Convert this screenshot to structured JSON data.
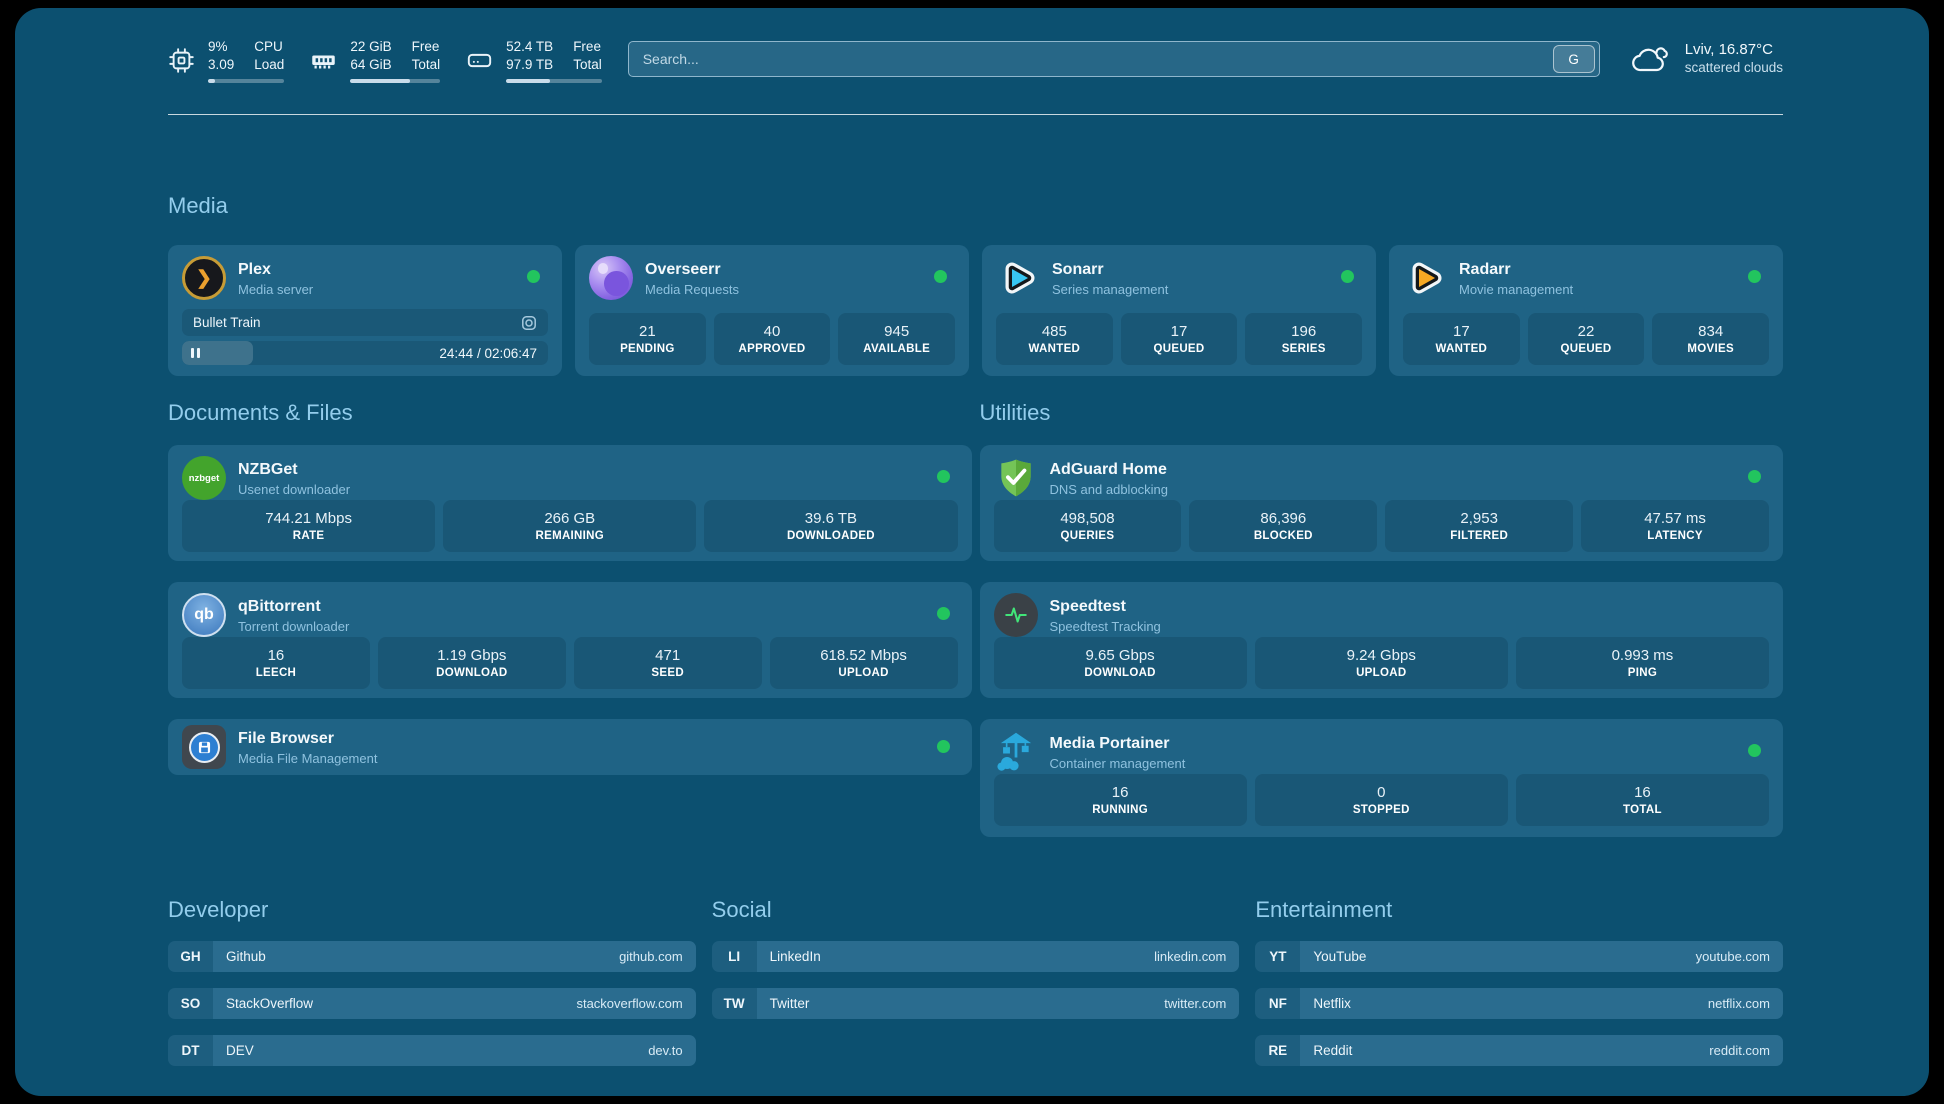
{
  "colors": {
    "page_bg": "#0C5070",
    "card_bg": "#1F6385",
    "status_online": "#22C55E",
    "heading": "#93CDEC"
  },
  "header": {
    "system": [
      {
        "icon": "cpu-icon",
        "values": [
          "9%",
          "3.09"
        ],
        "labels": [
          "CPU",
          "Load"
        ],
        "progress_percent": 9
      },
      {
        "icon": "ram-icon",
        "values": [
          "22 GiB",
          "64 GiB"
        ],
        "labels": [
          "Free",
          "Total"
        ],
        "progress_percent": 66
      },
      {
        "icon": "disk-icon",
        "values": [
          "52.4 TB",
          "97.9 TB"
        ],
        "labels": [
          "Free",
          "Total"
        ],
        "progress_percent": 46
      }
    ],
    "search": {
      "placeholder": "Search...",
      "key_label": "G"
    },
    "weather": {
      "icon": "cloud-icon",
      "location_temp": "Lviv, 16.87°C",
      "condition": "scattered clouds"
    }
  },
  "sections": {
    "media": {
      "title": "Media",
      "cards": {
        "plex": {
          "icon": "plex-icon",
          "icon_glyph": "❯",
          "name": "Plex",
          "desc": "Media server",
          "online": true,
          "now_playing": {
            "title": "Bullet Train",
            "time": "24:44 / 02:06:47",
            "progress_percent": 19.5
          }
        },
        "overseerr": {
          "icon": "overseerr-icon",
          "name": "Overseerr",
          "desc": "Media Requests",
          "online": true,
          "stats": [
            {
              "value": "21",
              "label": "PENDING"
            },
            {
              "value": "40",
              "label": "APPROVED"
            },
            {
              "value": "945",
              "label": "AVAILABLE"
            }
          ]
        },
        "sonarr": {
          "icon": "sonarr-icon",
          "name": "Sonarr",
          "desc": "Series management",
          "online": true,
          "stats": [
            {
              "value": "485",
              "label": "WANTED"
            },
            {
              "value": "17",
              "label": "QUEUED"
            },
            {
              "value": "196",
              "label": "SERIES"
            }
          ]
        },
        "radarr": {
          "icon": "radarr-icon",
          "name": "Radarr",
          "desc": "Movie management",
          "online": true,
          "stats": [
            {
              "value": "17",
              "label": "WANTED"
            },
            {
              "value": "22",
              "label": "QUEUED"
            },
            {
              "value": "834",
              "label": "MOVIES"
            }
          ]
        }
      }
    },
    "documents": {
      "title": "Documents & Files",
      "cards": {
        "nzbget": {
          "icon": "nzbget-icon",
          "icon_text": "nzbget",
          "name": "NZBGet",
          "desc": "Usenet downloader",
          "online": true,
          "stats": [
            {
              "value": "744.21 Mbps",
              "label": "RATE"
            },
            {
              "value": "266 GB",
              "label": "REMAINING"
            },
            {
              "value": "39.6 TB",
              "label": "DOWNLOADED"
            }
          ]
        },
        "qbittorrent": {
          "icon": "qbittorrent-icon",
          "icon_text": "qb",
          "name": "qBittorrent",
          "desc": "Torrent downloader",
          "online": true,
          "stats": [
            {
              "value": "16",
              "label": "LEECH"
            },
            {
              "value": "1.19 Gbps",
              "label": "DOWNLOAD"
            },
            {
              "value": "471",
              "label": "SEED"
            },
            {
              "value": "618.52 Mbps",
              "label": "UPLOAD"
            }
          ]
        },
        "filebrowser": {
          "icon": "filebrowser-icon",
          "name": "File Browser",
          "desc": "Media File Management",
          "online": true
        }
      }
    },
    "utilities": {
      "title": "Utilities",
      "cards": {
        "adguard": {
          "icon": "adguard-icon",
          "name": "AdGuard Home",
          "desc": "DNS and adblocking",
          "online": true,
          "stats": [
            {
              "value": "498,508",
              "label": "QUERIES"
            },
            {
              "value": "86,396",
              "label": "BLOCKED"
            },
            {
              "value": "2,953",
              "label": "FILTERED"
            },
            {
              "value": "47.57 ms",
              "label": "LATENCY"
            }
          ]
        },
        "speedtest": {
          "icon": "speedtest-icon",
          "name": "Speedtest",
          "desc": "Speedtest Tracking",
          "online": false,
          "stats": [
            {
              "value": "9.65 Gbps",
              "label": "DOWNLOAD"
            },
            {
              "value": "9.24 Gbps",
              "label": "UPLOAD"
            },
            {
              "value": "0.993 ms",
              "label": "PING"
            }
          ]
        },
        "portainer": {
          "icon": "portainer-icon",
          "name": "Media Portainer",
          "desc": "Container management",
          "online": true,
          "stats": [
            {
              "value": "16",
              "label": "RUNNING"
            },
            {
              "value": "0",
              "label": "STOPPED"
            },
            {
              "value": "16",
              "label": "TOTAL"
            }
          ]
        }
      }
    }
  },
  "links": {
    "developer": {
      "title": "Developer",
      "items": [
        {
          "abbr": "GH",
          "name": "Github",
          "url": "github.com"
        },
        {
          "abbr": "SO",
          "name": "StackOverflow",
          "url": "stackoverflow.com"
        },
        {
          "abbr": "DT",
          "name": "DEV",
          "url": "dev.to"
        }
      ]
    },
    "social": {
      "title": "Social",
      "items": [
        {
          "abbr": "LI",
          "name": "LinkedIn",
          "url": "linkedin.com"
        },
        {
          "abbr": "TW",
          "name": "Twitter",
          "url": "twitter.com"
        }
      ]
    },
    "entertainment": {
      "title": "Entertainment",
      "items": [
        {
          "abbr": "YT",
          "name": "YouTube",
          "url": "youtube.com"
        },
        {
          "abbr": "NF",
          "name": "Netflix",
          "url": "netflix.com"
        },
        {
          "abbr": "RE",
          "name": "Reddit",
          "url": "reddit.com"
        }
      ]
    }
  }
}
